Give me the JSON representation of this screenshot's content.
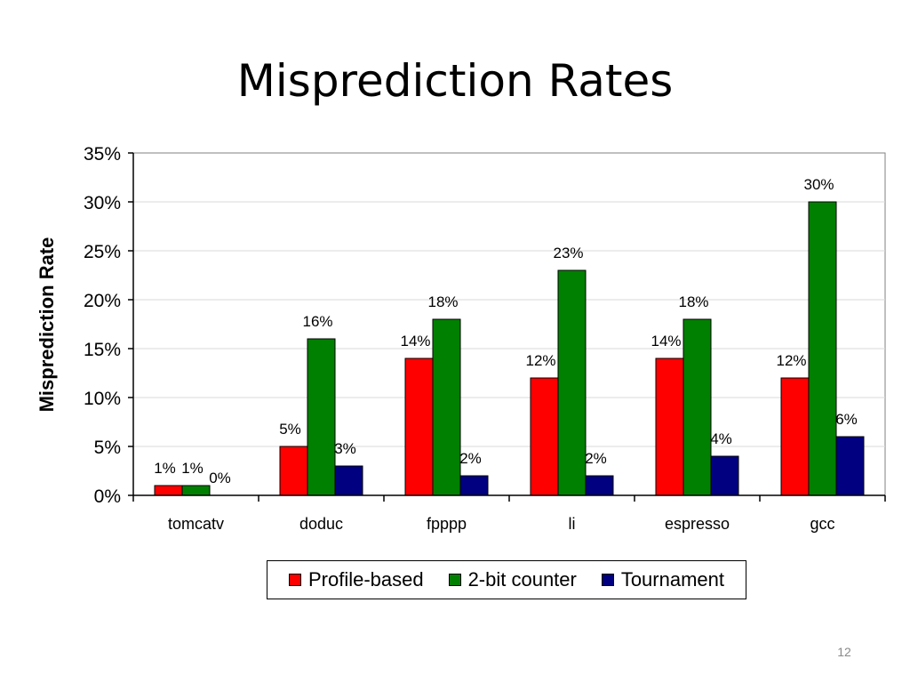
{
  "slide": {
    "title": "Misprediction Rates",
    "page_number": "12"
  },
  "chart_data": {
    "type": "bar",
    "title": "",
    "xlabel": "",
    "ylabel": "Misprediction Rate",
    "categories": [
      "tomcatv",
      "doduc",
      "fpppp",
      "li",
      "espresso",
      "gcc"
    ],
    "series": [
      {
        "name": "Profile-based",
        "color": "#ff0000",
        "values": [
          1,
          5,
          14,
          12,
          14,
          12
        ]
      },
      {
        "name": "2-bit counter",
        "color": "#008000",
        "values": [
          1,
          16,
          18,
          23,
          18,
          30
        ]
      },
      {
        "name": "Tournament",
        "color": "#000080",
        "values": [
          0,
          3,
          2,
          2,
          4,
          6
        ]
      }
    ],
    "ylim": [
      0,
      35
    ],
    "yticks": [
      0,
      5,
      10,
      15,
      20,
      25,
      30,
      35
    ],
    "ytick_labels": [
      "0%",
      "5%",
      "10%",
      "15%",
      "20%",
      "25%",
      "30%",
      "35%"
    ],
    "data_labels": [
      [
        "1%",
        "5%",
        "14%",
        "12%",
        "14%",
        "12%"
      ],
      [
        "1%",
        "16%",
        "18%",
        "23%",
        "18%",
        "30%"
      ],
      [
        "0%",
        "3%",
        "2%",
        "2%",
        "4%",
        "6%"
      ]
    ],
    "grid": true,
    "legend_position": "bottom"
  }
}
